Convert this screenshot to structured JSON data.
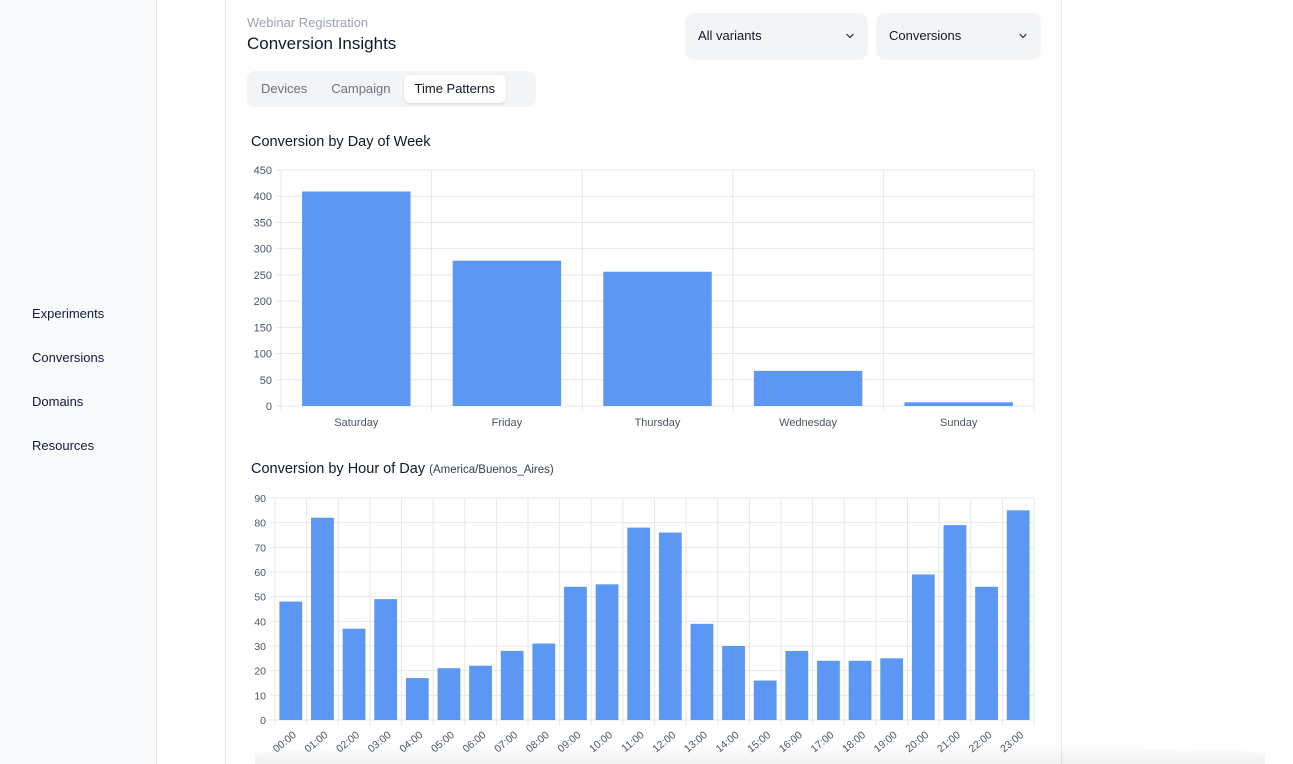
{
  "sidebar": {
    "items": [
      {
        "label": "Experiments"
      },
      {
        "label": "Conversions"
      },
      {
        "label": "Domains"
      },
      {
        "label": "Resources"
      }
    ]
  },
  "header": {
    "eyebrow": "Webinar Registration",
    "title": "Conversion Insights"
  },
  "filters": {
    "variant": {
      "selected": "All variants",
      "icon": "chevron-down-icon"
    },
    "metric": {
      "selected": "Conversions",
      "icon": "chevron-down-icon"
    }
  },
  "tabs": [
    {
      "label": "Devices",
      "active": false
    },
    {
      "label": "Campaign",
      "active": false
    },
    {
      "label": "Time Patterns",
      "active": true
    }
  ],
  "colors": {
    "bar": "#5b97f3",
    "grid": "#e5e7eb",
    "tick": "#4b5563"
  },
  "sections": {
    "day": {
      "title": "Conversion by Day of Week"
    },
    "hour": {
      "title": "Conversion by Hour of Day",
      "subtitle": "(America/Buenos_Aires)"
    }
  },
  "chart_data": [
    {
      "type": "bar",
      "title": "Conversion by Day of Week",
      "categories": [
        "Saturday",
        "Friday",
        "Thursday",
        "Wednesday",
        "Sunday"
      ],
      "values": [
        409,
        277,
        256,
        67,
        7
      ],
      "ylim": [
        0,
        450
      ],
      "yticks": [
        0,
        50,
        100,
        150,
        200,
        250,
        300,
        350,
        400,
        450
      ],
      "grid": true
    },
    {
      "type": "bar",
      "title": "Conversion by Hour of Day",
      "subtitle": "(America/Buenos_Aires)",
      "categories": [
        "00:00",
        "01:00",
        "02:00",
        "03:00",
        "04:00",
        "05:00",
        "06:00",
        "07:00",
        "08:00",
        "09:00",
        "10:00",
        "11:00",
        "12:00",
        "13:00",
        "14:00",
        "15:00",
        "16:00",
        "17:00",
        "18:00",
        "19:00",
        "20:00",
        "21:00",
        "22:00",
        "23:00"
      ],
      "values": [
        48,
        82,
        37,
        49,
        17,
        21,
        22,
        28,
        31,
        54,
        55,
        78,
        76,
        39,
        30,
        16,
        28,
        24,
        24,
        25,
        59,
        79,
        54,
        85
      ],
      "ylim": [
        0,
        90
      ],
      "yticks": [
        0,
        10,
        20,
        30,
        40,
        50,
        60,
        70,
        80,
        90
      ],
      "grid": true
    }
  ]
}
